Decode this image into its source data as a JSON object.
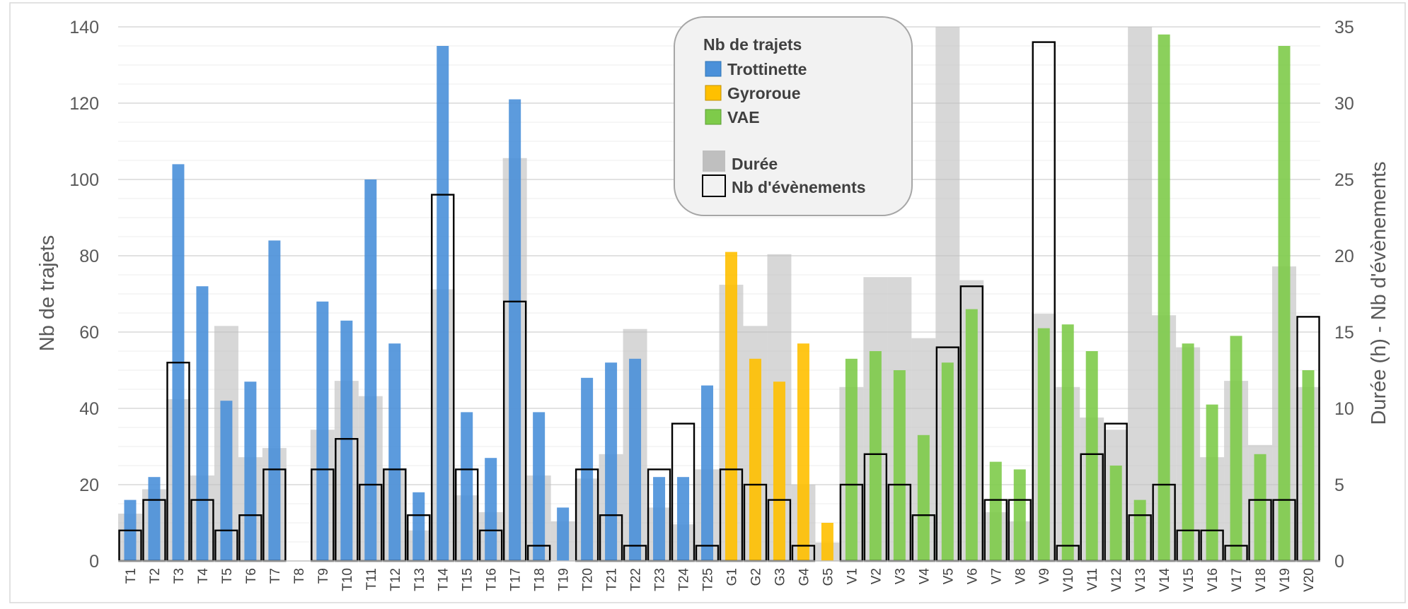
{
  "chart_data": {
    "type": "bar",
    "title": "",
    "categories": [
      "T1",
      "T2",
      "T3",
      "T4",
      "T5",
      "T6",
      "T7",
      "T8",
      "T9",
      "T10",
      "T11",
      "T12",
      "T13",
      "T14",
      "T15",
      "T16",
      "T17",
      "T18",
      "T19",
      "T20",
      "T21",
      "T22",
      "T23",
      "T24",
      "T25",
      "G1",
      "G2",
      "G3",
      "G4",
      "G5",
      "V1",
      "V2",
      "V3",
      "V4",
      "V5",
      "V6",
      "V7",
      "V8",
      "V9",
      "V10",
      "V11",
      "V12",
      "V13",
      "V14",
      "V15",
      "V16",
      "V17",
      "V18",
      "V19",
      "V20"
    ],
    "ylabel_left": "Nb de trajets",
    "ylabel_right": "Durée (h) - Nb d'évènements",
    "ylim_left": [
      0,
      140
    ],
    "ylim_right": [
      0,
      35
    ],
    "yticks_left": [
      "0",
      "20",
      "40",
      "60",
      "80",
      "100",
      "120",
      "140"
    ],
    "yticks_right": [
      "0",
      "5",
      "10",
      "15",
      "20",
      "25",
      "30",
      "35"
    ],
    "grid": true,
    "legend_position": "top-center",
    "legend": {
      "heading": "Nb de trajets",
      "items": [
        {
          "label": "Trottinette",
          "color": "#4a90d9"
        },
        {
          "label": "Gyroroue",
          "color": "#ffc000"
        },
        {
          "label": "VAE",
          "color": "#7ecb4a"
        },
        {
          "label": "Durée",
          "color": "#bfbfbf"
        },
        {
          "label": "Nb d'évènements",
          "color": "#000000"
        }
      ]
    },
    "series": [
      {
        "name": "Trottinette",
        "axis": "left",
        "color": "#4a90d9",
        "values": [
          16,
          22,
          104,
          72,
          42,
          47,
          84,
          0,
          68,
          63,
          100,
          57,
          18,
          135,
          39,
          27,
          121,
          39,
          14,
          48,
          52,
          53,
          22,
          22,
          46,
          null,
          null,
          null,
          null,
          null,
          null,
          null,
          null,
          null,
          null,
          null,
          null,
          null,
          null,
          null,
          null,
          null,
          null,
          null,
          null,
          null,
          null,
          null,
          null,
          null
        ]
      },
      {
        "name": "Gyroroue",
        "axis": "left",
        "color": "#ffc000",
        "values": [
          null,
          null,
          null,
          null,
          null,
          null,
          null,
          null,
          null,
          null,
          null,
          null,
          null,
          null,
          null,
          null,
          null,
          null,
          null,
          null,
          null,
          null,
          null,
          null,
          null,
          81,
          53,
          47,
          57,
          10,
          null,
          null,
          null,
          null,
          null,
          null,
          null,
          null,
          null,
          null,
          null,
          null,
          null,
          null,
          null,
          null,
          null,
          null,
          null,
          null
        ]
      },
      {
        "name": "VAE",
        "axis": "left",
        "color": "#7ecb4a",
        "values": [
          null,
          null,
          null,
          null,
          null,
          null,
          null,
          null,
          null,
          null,
          null,
          null,
          null,
          null,
          null,
          null,
          null,
          null,
          null,
          null,
          null,
          null,
          null,
          null,
          null,
          null,
          null,
          null,
          null,
          null,
          53,
          55,
          50,
          33,
          52,
          66,
          26,
          24,
          61,
          62,
          55,
          25,
          16,
          138,
          57,
          41,
          59,
          28,
          135,
          50
        ]
      },
      {
        "name": "Durée",
        "axis": "right",
        "color": "#bfbfbf",
        "values": [
          3.1,
          4.7,
          10.6,
          5.6,
          15.4,
          6.8,
          7.4,
          0,
          8.6,
          11.8,
          10.8,
          6.1,
          2.0,
          17.8,
          4.3,
          3.2,
          26.4,
          5.6,
          2.6,
          5.4,
          7.0,
          15.2,
          3.5,
          2.4,
          6.0,
          18.1,
          15.4,
          20.1,
          5.0,
          1.2,
          11.4,
          18.6,
          18.6,
          14.6,
          35,
          18.4,
          3.2,
          2.6,
          16.2,
          11.4,
          9.4,
          8.6,
          35,
          16.1,
          14.0,
          6.8,
          11.8,
          7.6,
          19.3,
          11.4
        ]
      },
      {
        "name": "Nb d'évènements",
        "axis": "right",
        "color": "#000000",
        "values": [
          2,
          4,
          13,
          4,
          2,
          3,
          6,
          0,
          6,
          8,
          5,
          6,
          3,
          24,
          6,
          2,
          17,
          1,
          0,
          6,
          3,
          1,
          6,
          9,
          1,
          6,
          5,
          4,
          1,
          0,
          5,
          7,
          5,
          3,
          14,
          18,
          4,
          4,
          34,
          1,
          7,
          9,
          3,
          5,
          2,
          2,
          1,
          4,
          4,
          16
        ]
      }
    ]
  }
}
